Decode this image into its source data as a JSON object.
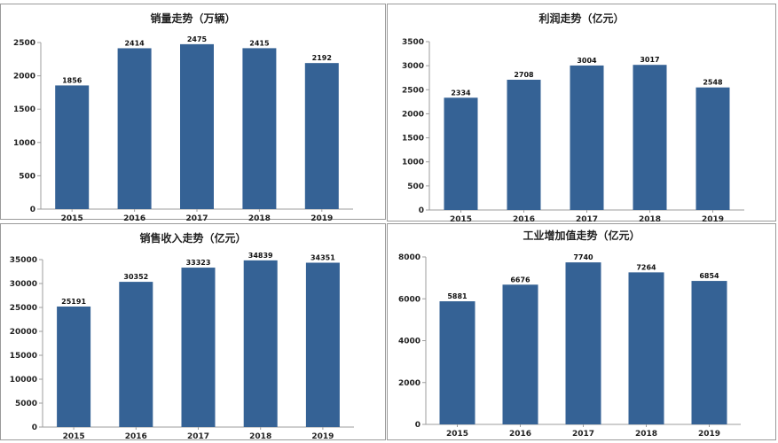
{
  "colors": {
    "bar": "#356295"
  },
  "chart_data": [
    {
      "type": "bar",
      "title": "销量走势（万辆）",
      "categories": [
        "2015",
        "2016",
        "2017",
        "2018",
        "2019"
      ],
      "values": [
        1856,
        2414,
        2475,
        2415,
        2192
      ],
      "ylim": [
        0,
        2500
      ],
      "yticks": [
        0,
        500,
        1000,
        1500,
        2000,
        2500
      ],
      "grid": false
    },
    {
      "type": "bar",
      "title": "利润走势（亿元）",
      "categories": [
        "2015",
        "2016",
        "2017",
        "2018",
        "2019"
      ],
      "values": [
        2334,
        2708,
        3004,
        3017,
        2548
      ],
      "ylim": [
        0,
        3500
      ],
      "yticks": [
        0,
        500,
        1000,
        1500,
        2000,
        2500,
        3000,
        3500
      ],
      "grid": false
    },
    {
      "type": "bar",
      "title": "销售收入走势（亿元）",
      "categories": [
        "2015",
        "2016",
        "2017",
        "2018",
        "2019"
      ],
      "values": [
        25191,
        30352,
        33323,
        34839,
        34351
      ],
      "ylim": [
        0,
        35000
      ],
      "yticks": [
        0,
        5000,
        10000,
        15000,
        20000,
        25000,
        30000,
        35000
      ],
      "grid": false
    },
    {
      "type": "bar",
      "title": "工业增加值走势（亿元）",
      "categories": [
        "2015",
        "2016",
        "2017",
        "2018",
        "2019"
      ],
      "values": [
        5881,
        6676,
        7740,
        7264,
        6854
      ],
      "ylim": [
        0,
        8000
      ],
      "yticks": [
        0,
        2000,
        4000,
        6000,
        8000
      ],
      "grid": false
    }
  ]
}
